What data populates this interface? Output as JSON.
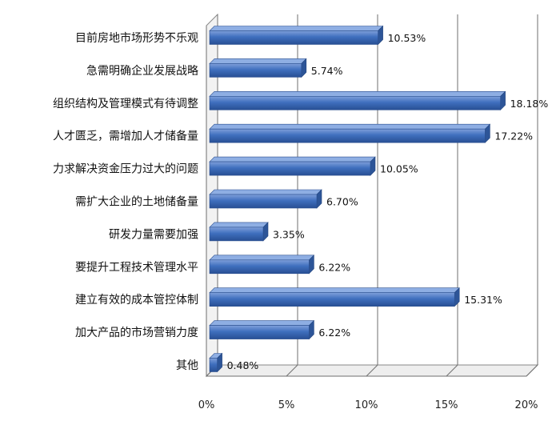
{
  "chart_data": {
    "type": "bar",
    "orientation": "horizontal",
    "style": "3d",
    "categories": [
      "目前房地市场形势不乐观",
      "急需明确企业发展战略",
      "组织结构及管理模式有待调整",
      "人才匮乏，需增加人才储备量",
      "力求解决资金压力过大的问题",
      "需扩大企业的土地储备量",
      "研发力量需要加强",
      "要提升工程技术管理水平",
      "建立有效的成本管控体制",
      "加大产品的市场营销力度",
      "其他"
    ],
    "values": [
      10.53,
      5.74,
      18.18,
      17.22,
      10.05,
      6.7,
      3.35,
      6.22,
      15.31,
      6.22,
      0.48
    ],
    "value_labels": [
      "10.53%",
      "5.74%",
      "18.18%",
      "17.22%",
      "10.05%",
      "6.70%",
      "3.35%",
      "6.22%",
      "15.31%",
      "6.22%",
      "0.48%"
    ],
    "xlim": [
      0,
      20
    ],
    "xticks": [
      0,
      5,
      10,
      15,
      20
    ],
    "xtick_labels": [
      "0%",
      "5%",
      "10%",
      "15%",
      "20%"
    ],
    "grid": true,
    "bar_color": "#3d6fbe",
    "title": "",
    "xlabel": "",
    "ylabel": ""
  }
}
